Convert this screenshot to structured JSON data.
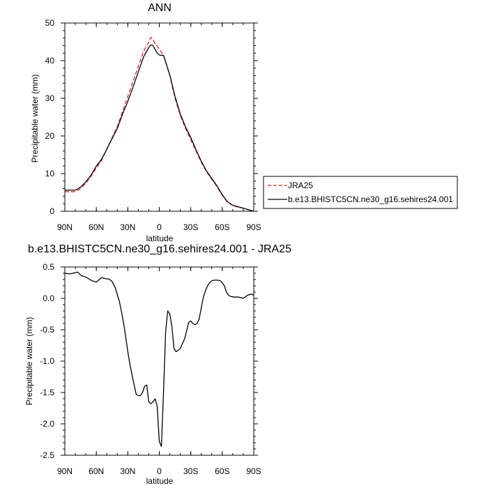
{
  "colors": {
    "model": "#000000",
    "obs": "#e8231b"
  },
  "chart_data": [
    {
      "type": "line",
      "title": "ANN",
      "xlabel": "latitude",
      "ylabel": "Precipitable water (mm)",
      "xlim": [
        90,
        -90
      ],
      "ylim": [
        0,
        50
      ],
      "xticks": [
        90,
        60,
        30,
        0,
        -30,
        -60,
        -90
      ],
      "xtick_labels": [
        "90N",
        "60N",
        "30N",
        "0",
        "30S",
        "60S",
        "90S"
      ],
      "yticks": [
        0,
        10,
        20,
        30,
        40,
        50
      ],
      "ytick_labels": [
        "0",
        "10",
        "20",
        "30",
        "40",
        "50"
      ],
      "grid": false,
      "legend": "right",
      "series": [
        {
          "name": "JRA25",
          "style": "dashed",
          "color": "#e8231b",
          "x": [
            90,
            80,
            75,
            70,
            65,
            60,
            55,
            50,
            45,
            40,
            35,
            30,
            25,
            20,
            15,
            10,
            8,
            6,
            4,
            2,
            0,
            -2,
            -4,
            -5,
            -10,
            -15,
            -20,
            -25,
            -30,
            -35,
            -40,
            -45,
            -50,
            -55,
            -60,
            -65,
            -70,
            -75,
            -80,
            -85,
            -90
          ],
          "y": [
            5.2,
            5.2,
            6.0,
            7.5,
            9.3,
            11.5,
            13.5,
            16.5,
            19.5,
            22.5,
            26.5,
            30.5,
            34.5,
            38.5,
            42.5,
            45.0,
            46.2,
            45.6,
            44.5,
            43.8,
            43.0,
            42.2,
            41.6,
            40.5,
            36.0,
            30.0,
            25.5,
            22.0,
            19.0,
            16.0,
            13.0,
            10.5,
            8.5,
            6.5,
            4.2,
            2.4,
            1.5,
            1.1,
            0.8,
            0.4,
            0.0
          ]
        },
        {
          "name": "b.e13.BHISTC5CN.ne30_g16.sehires24.001",
          "style": "solid",
          "color": "#000000",
          "x": [
            90,
            80,
            75,
            70,
            65,
            60,
            55,
            50,
            45,
            40,
            35,
            30,
            25,
            20,
            15,
            10,
            8,
            6,
            4,
            2,
            0,
            -2,
            -4,
            -5,
            -10,
            -15,
            -20,
            -25,
            -30,
            -35,
            -40,
            -45,
            -50,
            -55,
            -60,
            -65,
            -70,
            -75,
            -80,
            -85,
            -90
          ],
          "y": [
            5.6,
            5.6,
            6.4,
            7.8,
            9.6,
            12.0,
            13.8,
            16.5,
            19.3,
            22.0,
            25.8,
            29.2,
            33.0,
            37.0,
            41.0,
            43.5,
            44.2,
            44.0,
            43.0,
            42.0,
            41.5,
            41.4,
            41.4,
            40.6,
            36.2,
            30.5,
            25.8,
            22.4,
            19.6,
            16.3,
            13.3,
            10.7,
            8.7,
            6.7,
            4.4,
            2.5,
            1.6,
            1.2,
            0.8,
            0.4,
            0.0
          ]
        }
      ]
    },
    {
      "type": "line",
      "title": "b.e13.BHISTC5CN.ne30_g16.sehires24.001 - JRA25",
      "xlabel": "latitude",
      "ylabel": "Precipitable water (mm)",
      "xlim": [
        90,
        -90
      ],
      "ylim": [
        -2.5,
        0.5
      ],
      "xticks": [
        90,
        60,
        30,
        0,
        -30,
        -60,
        -90
      ],
      "xtick_labels": [
        "90N",
        "60N",
        "30N",
        "0",
        "30S",
        "60S",
        "90S"
      ],
      "yticks": [
        0.5,
        0.0,
        -0.5,
        -1.0,
        -1.5,
        -2.0,
        -2.5
      ],
      "ytick_labels": [
        "0.5",
        "0.0",
        "-0.5",
        "-1.0",
        "-1.5",
        "-2.0",
        "-2.5"
      ],
      "grid": false,
      "series": [
        {
          "style": "solid",
          "color": "#000000",
          "x": [
            90,
            85,
            80,
            78,
            74,
            70,
            66,
            64,
            60,
            55,
            50,
            48,
            45,
            42,
            38,
            35,
            33,
            30,
            28,
            25,
            22,
            20,
            18,
            16,
            14,
            12,
            10,
            8,
            6,
            4,
            2,
            0,
            -2,
            -4,
            -6,
            -8,
            -10,
            -12,
            -14,
            -16,
            -20,
            -22,
            -24,
            -26,
            -28,
            -30,
            -32,
            -34,
            -36,
            -38,
            -40,
            -42,
            -44,
            -46,
            -48,
            -50,
            -52,
            -54,
            -56,
            -58,
            -60,
            -62,
            -64,
            -66,
            -68,
            -72,
            -76,
            -80,
            -84,
            -88,
            -90
          ],
          "y": [
            0.4,
            0.39,
            0.41,
            0.42,
            0.36,
            0.34,
            0.3,
            0.28,
            0.26,
            0.33,
            0.31,
            0.31,
            0.27,
            0.17,
            -0.05,
            -0.3,
            -0.5,
            -0.85,
            -1.05,
            -1.3,
            -1.53,
            -1.55,
            -1.55,
            -1.5,
            -1.4,
            -1.38,
            -1.65,
            -1.68,
            -1.65,
            -1.6,
            -1.72,
            -2.28,
            -2.36,
            -1.5,
            -0.55,
            -0.2,
            -0.25,
            -0.45,
            -0.8,
            -0.85,
            -0.8,
            -0.72,
            -0.65,
            -0.52,
            -0.38,
            -0.36,
            -0.4,
            -0.42,
            -0.4,
            -0.33,
            -0.15,
            0.02,
            0.12,
            0.2,
            0.25,
            0.28,
            0.29,
            0.29,
            0.29,
            0.28,
            0.25,
            0.2,
            0.1,
            0.05,
            0.03,
            0.02,
            0.02,
            0.0,
            0.05,
            0.07,
            0.05
          ]
        }
      ]
    }
  ]
}
